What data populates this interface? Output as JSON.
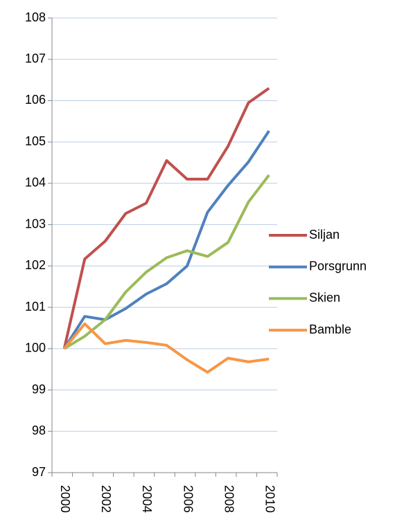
{
  "chart_data": {
    "type": "line",
    "categories": [
      "2000",
      null,
      "2002",
      null,
      "2004",
      null,
      "2006",
      null,
      "2008",
      null,
      "2010"
    ],
    "series": [
      {
        "name": "Siljan",
        "color": "#c0504d",
        "values": [
          100,
          102.17,
          102.6,
          103.27,
          103.52,
          104.55,
          104.1,
          104.1,
          104.9,
          105.95,
          106.3
        ]
      },
      {
        "name": "Porsgrunn",
        "color": "#4f81bd",
        "values": [
          100,
          100.78,
          100.7,
          100.97,
          101.32,
          101.57,
          102.0,
          103.3,
          103.95,
          104.52,
          105.27
        ]
      },
      {
        "name": "Skien",
        "color": "#9bbb59",
        "values": [
          100,
          100.3,
          100.7,
          101.37,
          101.85,
          102.2,
          102.37,
          102.23,
          102.57,
          103.55,
          104.2
        ]
      },
      {
        "name": "Bamble",
        "color": "#f79646",
        "values": [
          100,
          100.6,
          100.12,
          100.2,
          100.15,
          100.08,
          99.73,
          99.43,
          99.77,
          99.68,
          99.75
        ]
      }
    ],
    "ylim": [
      97,
      108
    ],
    "yticks": [
      97,
      98,
      99,
      100,
      101,
      102,
      103,
      104,
      105,
      106,
      107,
      108
    ],
    "grid": true,
    "legend": "right"
  }
}
